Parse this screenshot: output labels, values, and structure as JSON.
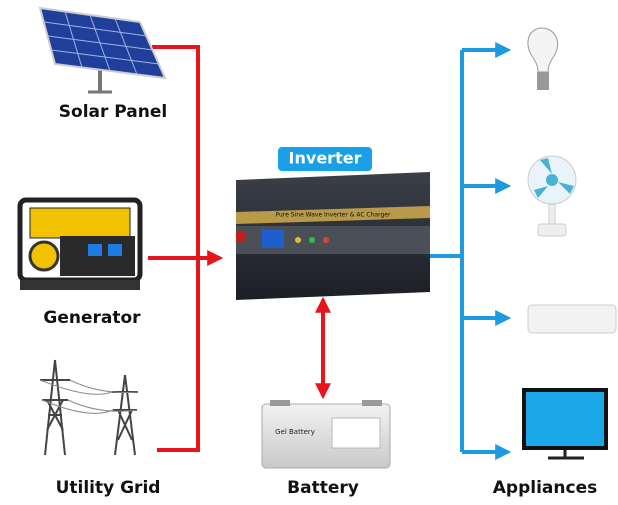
{
  "sources": [
    {
      "label": "Solar Panel"
    },
    {
      "label": "Generator"
    },
    {
      "label": "Utility Grid"
    }
  ],
  "inverter": {
    "label": "Inverter",
    "caption": "Pure Sine Wave Inverter & AC Charger"
  },
  "battery": {
    "label": "Battery",
    "caption": "Gel Battery"
  },
  "appliances": {
    "label": "Appliances"
  }
}
